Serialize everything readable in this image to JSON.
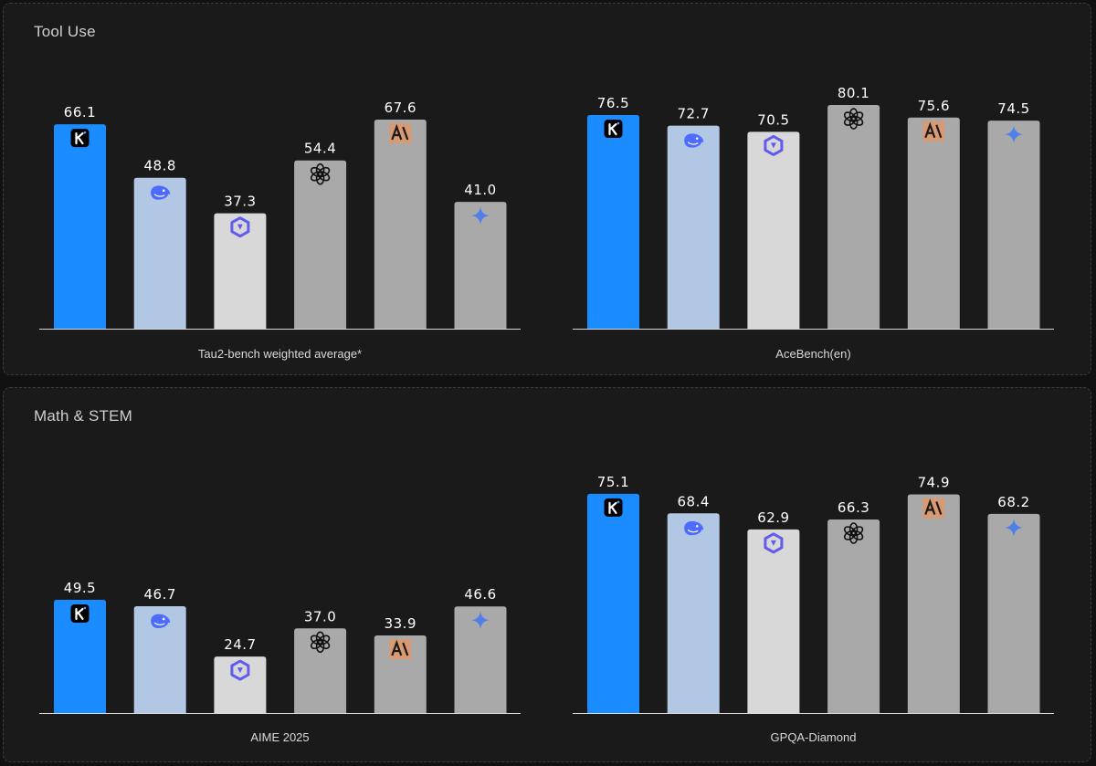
{
  "colors": {
    "kimi": "#1b8cff",
    "deepseek": "#b2c7e4",
    "qwen": "#d8d8d8",
    "openai": "#a9a9a9",
    "anthropic": "#a9a9a9",
    "gemini": "#a9a9a9",
    "axis": "#d9d9d9",
    "label": "#ffffff",
    "anthropic_badge": "#d89a72"
  },
  "icons": [
    "kimi-logo-icon",
    "deepseek-whale-icon",
    "qwen-logo-icon",
    "openai-logo-icon",
    "anthropic-logo-icon",
    "gemini-sparkle-icon"
  ],
  "sections": [
    {
      "title": "Tool Use"
    },
    {
      "title": "Math & STEM"
    }
  ],
  "chart_data": [
    {
      "type": "bar",
      "section": "Tool Use",
      "xlabel": "Tau2-bench weighted average*",
      "categories": [
        "kimi",
        "deepseek",
        "qwen",
        "openai",
        "anthropic",
        "gemini"
      ],
      "values": [
        66.1,
        48.8,
        37.3,
        54.4,
        67.6,
        41.0
      ],
      "value_labels": [
        "66.1",
        "48.8",
        "37.3",
        "54.4",
        "67.6",
        "41.0"
      ],
      "ylim": [
        0,
        80
      ]
    },
    {
      "type": "bar",
      "section": "Tool Use",
      "xlabel": "AceBench(en)",
      "categories": [
        "kimi",
        "deepseek",
        "qwen",
        "openai",
        "anthropic",
        "gemini"
      ],
      "values": [
        76.5,
        72.7,
        70.5,
        80.1,
        75.6,
        74.5
      ],
      "value_labels": [
        "76.5",
        "72.7",
        "70.5",
        "80.1",
        "75.6",
        "74.5"
      ],
      "ylim": [
        0,
        86
      ]
    },
    {
      "type": "bar",
      "section": "Math & STEM",
      "xlabel": "AIME 2025",
      "categories": [
        "kimi",
        "deepseek",
        "qwen",
        "openai",
        "anthropic",
        "gemini"
      ],
      "values": [
        49.5,
        46.7,
        24.7,
        37.0,
        33.9,
        46.6
      ],
      "value_labels": [
        "49.5",
        "46.7",
        "24.7",
        "37.0",
        "33.9",
        "46.6"
      ],
      "ylim": [
        0,
        83
      ]
    },
    {
      "type": "bar",
      "section": "Math & STEM",
      "xlabel": "GPQA-Diamond",
      "categories": [
        "kimi",
        "deepseek",
        "qwen",
        "openai",
        "anthropic",
        "gemini"
      ],
      "values": [
        75.1,
        68.4,
        62.9,
        66.3,
        74.9,
        68.2
      ],
      "value_labels": [
        "75.1",
        "68.4",
        "62.9",
        "66.3",
        "74.9",
        "68.2"
      ],
      "ylim": [
        0,
        86
      ]
    }
  ]
}
